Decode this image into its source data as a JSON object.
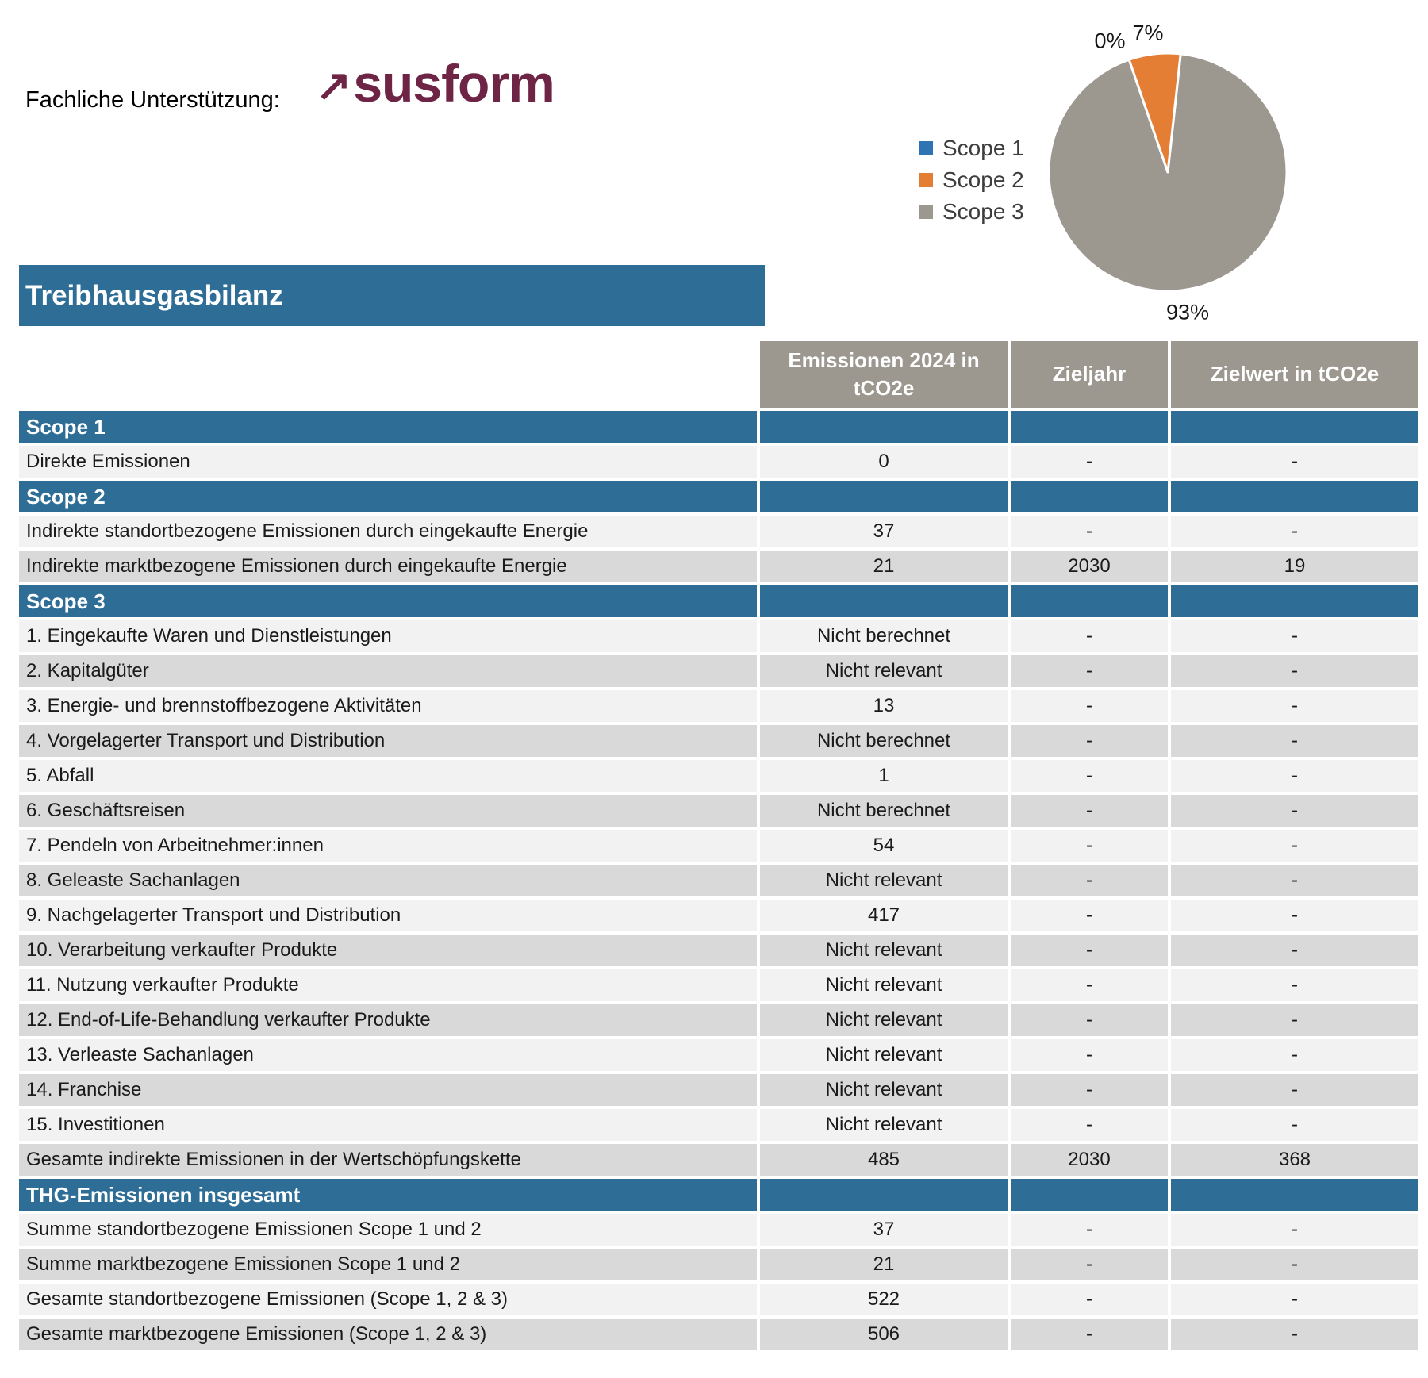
{
  "topbar": {
    "support_label": "Fachliche Unterstützung:",
    "logo": {
      "arrow": "↗",
      "text": "susform",
      "color": "#6E2444"
    }
  },
  "banner": {
    "title": "Treibhausgasbilanz"
  },
  "chart_data": {
    "type": "pie",
    "title": "",
    "labels": [
      "Scope 1",
      "Scope 2",
      "Scope 3"
    ],
    "values": [
      0,
      7,
      93
    ],
    "value_labels": [
      "0%",
      "7%",
      "93%"
    ],
    "colors": [
      "#2E74B5",
      "#E57E35",
      "#9C9890"
    ],
    "start_angle_deg": -19,
    "legend_position": "left",
    "slice_border_color": "#ffffff"
  },
  "table": {
    "columns": [
      "Emissionen 2024 in tCO2e",
      "Zieljahr",
      "Zielwert in tCO2e"
    ],
    "rows": [
      {
        "type": "section",
        "label": "Scope 1"
      },
      {
        "type": "data",
        "shade": "light",
        "label": "Direkte Emissionen",
        "values": [
          "0",
          "-",
          "-"
        ]
      },
      {
        "type": "section",
        "label": "Scope 2"
      },
      {
        "type": "data",
        "shade": "light",
        "label": "Indirekte standortbezogene Emissionen durch eingekaufte Energie",
        "values": [
          "37",
          "-",
          "-"
        ]
      },
      {
        "type": "data",
        "shade": "dark",
        "label": "Indirekte marktbezogene Emissionen durch eingekaufte Energie",
        "values": [
          "21",
          "2030",
          "19"
        ]
      },
      {
        "type": "section",
        "label": "Scope 3"
      },
      {
        "type": "data",
        "shade": "light",
        "label": "1. Eingekaufte Waren und Dienstleistungen",
        "values": [
          "Nicht berechnet",
          "-",
          "-"
        ]
      },
      {
        "type": "data",
        "shade": "dark",
        "label": "2. Kapitalgüter",
        "values": [
          "Nicht relevant",
          "-",
          "-"
        ]
      },
      {
        "type": "data",
        "shade": "light",
        "label": "3. Energie- und brennstoffbezogene Aktivitäten",
        "values": [
          "13",
          "-",
          "-"
        ]
      },
      {
        "type": "data",
        "shade": "dark",
        "label": "4. Vorgelagerter Transport und Distribution",
        "values": [
          "Nicht berechnet",
          "-",
          "-"
        ]
      },
      {
        "type": "data",
        "shade": "light",
        "label": "5. Abfall",
        "values": [
          "1",
          "-",
          "-"
        ]
      },
      {
        "type": "data",
        "shade": "dark",
        "label": "6. Geschäftsreisen",
        "values": [
          "Nicht berechnet",
          "-",
          "-"
        ]
      },
      {
        "type": "data",
        "shade": "light",
        "label": "7. Pendeln von Arbeitnehmer:innen",
        "values": [
          "54",
          "-",
          "-"
        ]
      },
      {
        "type": "data",
        "shade": "dark",
        "label": "8. Geleaste Sachanlagen",
        "values": [
          "Nicht relevant",
          "-",
          "-"
        ]
      },
      {
        "type": "data",
        "shade": "light",
        "label": "9. Nachgelagerter Transport und Distribution",
        "values": [
          "417",
          "-",
          "-"
        ]
      },
      {
        "type": "data",
        "shade": "dark",
        "label": "10. Verarbeitung verkaufter Produkte",
        "values": [
          "Nicht relevant",
          "-",
          "-"
        ]
      },
      {
        "type": "data",
        "shade": "light",
        "label": "11. Nutzung verkaufter Produkte",
        "values": [
          "Nicht relevant",
          "-",
          "-"
        ]
      },
      {
        "type": "data",
        "shade": "dark",
        "label": "12. End-of-Life-Behandlung verkaufter Produkte",
        "values": [
          "Nicht relevant",
          "-",
          "-"
        ]
      },
      {
        "type": "data",
        "shade": "light",
        "label": "13. Verleaste Sachanlagen",
        "values": [
          "Nicht relevant",
          "-",
          "-"
        ]
      },
      {
        "type": "data",
        "shade": "dark",
        "label": "14. Franchise",
        "values": [
          "Nicht relevant",
          "-",
          "-"
        ]
      },
      {
        "type": "data",
        "shade": "light",
        "label": "15. Investitionen",
        "values": [
          "Nicht relevant",
          "-",
          "-"
        ]
      },
      {
        "type": "data",
        "shade": "dark",
        "label": "Gesamte indirekte Emissionen in der Wertschöpfungskette",
        "values": [
          "485",
          "2030",
          "368"
        ]
      },
      {
        "type": "section",
        "label": "THG-Emissionen insgesamt"
      },
      {
        "type": "data",
        "shade": "light",
        "label": "Summe standortbezogene Emissionen Scope 1 und 2",
        "values": [
          "37",
          "-",
          "-"
        ]
      },
      {
        "type": "data",
        "shade": "dark",
        "label": "Summe marktbezogene Emissionen Scope 1 und 2",
        "values": [
          "21",
          "-",
          "-"
        ]
      },
      {
        "type": "data",
        "shade": "light",
        "label": "Gesamte standortbezogene Emissionen (Scope 1, 2 & 3)",
        "values": [
          "522",
          "-",
          "-"
        ]
      },
      {
        "type": "data",
        "shade": "dark",
        "label": "Gesamte marktbezogene Emissionen (Scope 1, 2 & 3)",
        "values": [
          "506",
          "-",
          "-"
        ]
      }
    ]
  }
}
